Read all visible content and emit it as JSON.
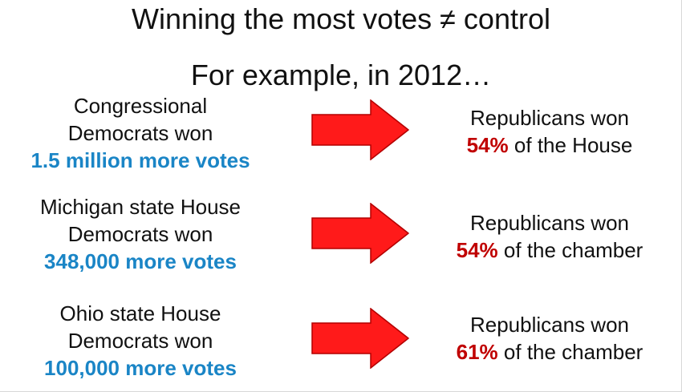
{
  "title": {
    "main": "Winning the most votes ≠ control",
    "sub": "For example, in 2012…"
  },
  "rows": [
    {
      "left": {
        "line1": "Congressional",
        "line2": "Democrats won",
        "highlight": "1.5 million more votes"
      },
      "right": {
        "line1": "Republicans won",
        "percent": "54%",
        "rest": " of the House"
      }
    },
    {
      "left": {
        "line1": "Michigan state House",
        "line2": "Democrats won",
        "highlight": "348,000 more votes"
      },
      "right": {
        "line1": "Republicans won",
        "percent": "54%",
        "rest": " of the chamber"
      }
    },
    {
      "left": {
        "line1": "Ohio state House",
        "line2": "Democrats won",
        "highlight": "100,000 more votes"
      },
      "right": {
        "line1": "Republicans won",
        "percent": "61%",
        "rest": " of the chamber"
      }
    }
  ],
  "colors": {
    "democrat_highlight": "#1a85c6",
    "republican_highlight": "#c00000",
    "arrow_fill": "#ff1a1a",
    "arrow_stroke": "#b30000"
  },
  "icons": {
    "arrow": "right-arrow-icon"
  }
}
